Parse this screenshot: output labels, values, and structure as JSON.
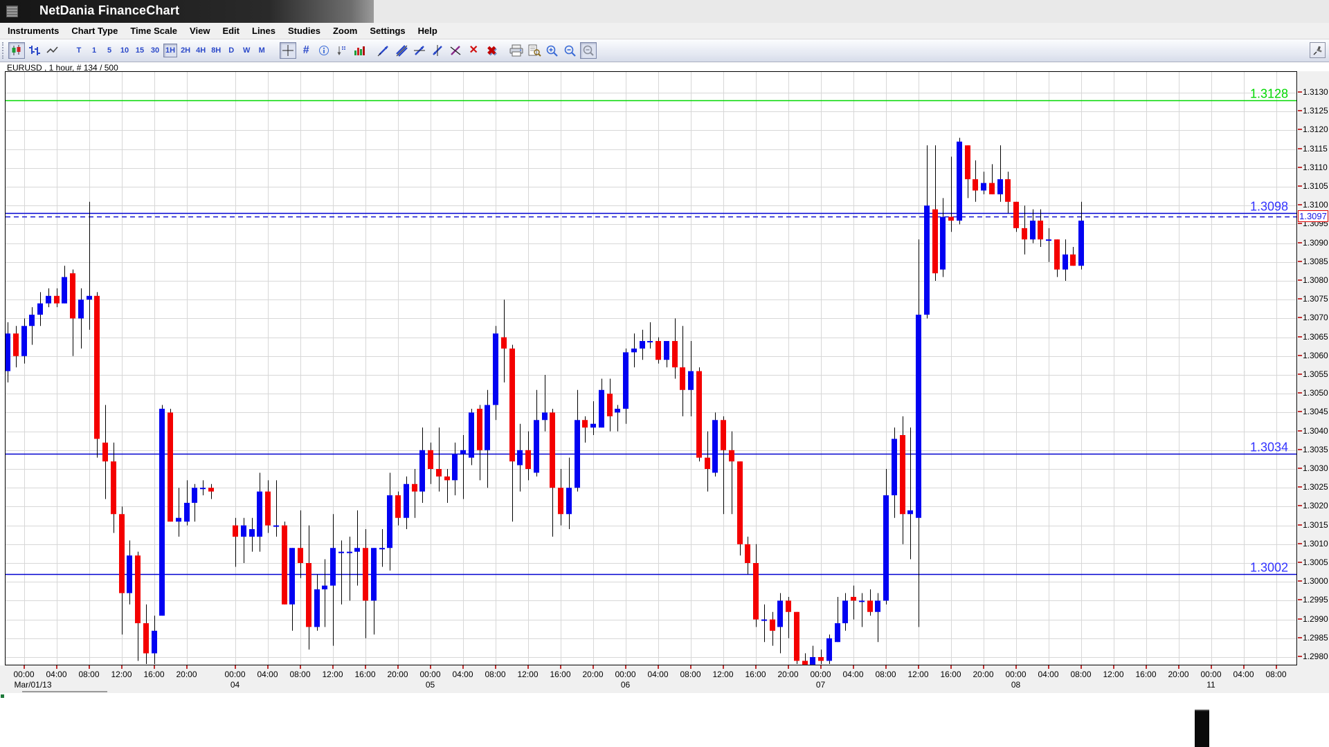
{
  "window": {
    "title": "NetDania FinanceChart"
  },
  "menu": {
    "items": [
      "Instruments",
      "Chart Type",
      "Time Scale",
      "View",
      "Edit",
      "Lines",
      "Studies",
      "Zoom",
      "Settings",
      "Help"
    ]
  },
  "toolbar": {
    "chart_type_buttons": [
      {
        "name": "candlestick-chart-type",
        "selected": true
      },
      {
        "name": "bar-chart-type",
        "selected": false
      },
      {
        "name": "line-chart-type",
        "selected": false
      }
    ],
    "periods": [
      "T",
      "1",
      "5",
      "10",
      "15",
      "30",
      "1H",
      "2H",
      "4H",
      "8H",
      "D",
      "W",
      "M"
    ],
    "selected_period": "1H",
    "tool_buttons": [
      {
        "name": "crosshair",
        "selected": true
      },
      {
        "name": "grid",
        "selected": false
      },
      {
        "name": "info",
        "selected": false
      },
      {
        "name": "pointer-values",
        "selected": false
      },
      {
        "name": "volume",
        "selected": false
      }
    ],
    "line_buttons": [
      {
        "name": "draw-trendline"
      },
      {
        "name": "draw-channel"
      },
      {
        "name": "draw-horizontal-line"
      },
      {
        "name": "draw-vertical-line"
      },
      {
        "name": "remove-line"
      },
      {
        "name": "delete-selected"
      },
      {
        "name": "delete-all"
      }
    ],
    "output_buttons": [
      {
        "name": "print"
      },
      {
        "name": "print-preview"
      },
      {
        "name": "zoom-in"
      },
      {
        "name": "zoom-out"
      },
      {
        "name": "zoom-reset",
        "selected": true
      }
    ],
    "pin_button": {
      "name": "pin-window"
    }
  },
  "chart": {
    "label": "EURUSD , 1 hour, # 134 / 500",
    "colors": {
      "up": "#0202f2",
      "down": "#f40000",
      "grid": "#d7d7d7",
      "level_blue": "#0000d0",
      "level_label_blue": "#3333ff",
      "level_green": "#00d800",
      "axis_tick_red": "#c03030"
    },
    "y_axis": {
      "min": 1.298,
      "max": 1.313,
      "step": 0.0005
    },
    "levels": [
      {
        "label": "1.3128",
        "price": 1.3128,
        "color": "green",
        "style": "solid"
      },
      {
        "label": "1.3098",
        "price": 1.3098,
        "color": "blue",
        "style": "solid"
      },
      {
        "label": "1.3034",
        "price": 1.3034,
        "color": "blue",
        "style": "solid"
      },
      {
        "label": "1.3002",
        "price": 1.3002,
        "color": "blue",
        "style": "solid"
      }
    ],
    "current_price": {
      "label": "1.3097",
      "price": 1.3097
    },
    "date_labels": {
      "Mar/01": "Mar/01/13",
      "Mar/04": "04",
      "Mar/05": "05",
      "Mar/06": "06",
      "Mar/07": "07",
      "Mar/08": "08",
      "Mar/11": "11"
    }
  },
  "chart_data": {
    "type": "candlestick",
    "instrument": "EURUSD",
    "interval": "1 hour",
    "ylim": [
      1.298,
      1.313
    ],
    "candles": [
      [
        "Feb/28",
        "22:00",
        1.3056,
        1.3069,
        1.3053,
        1.3066
      ],
      [
        "Feb/28",
        "23:00",
        1.3066,
        1.3068,
        1.3057,
        1.306
      ],
      [
        "Mar/01",
        "00:00",
        1.306,
        1.307,
        1.3058,
        1.3068
      ],
      [
        "Mar/01",
        "01:00",
        1.3068,
        1.3073,
        1.3063,
        1.3071
      ],
      [
        "Mar/01",
        "02:00",
        1.3071,
        1.3077,
        1.3068,
        1.3074
      ],
      [
        "Mar/01",
        "03:00",
        1.3074,
        1.3078,
        1.3073,
        1.3076
      ],
      [
        "Mar/01",
        "04:00",
        1.3076,
        1.3078,
        1.3073,
        1.3074
      ],
      [
        "Mar/01",
        "05:00",
        1.3074,
        1.3084,
        1.3074,
        1.3081
      ],
      [
        "Mar/01",
        "06:00",
        1.3082,
        1.3083,
        1.306,
        1.307
      ],
      [
        "Mar/01",
        "07:00",
        1.307,
        1.3078,
        1.3062,
        1.3075
      ],
      [
        "Mar/01",
        "08:00",
        1.3075,
        1.3101,
        1.3067,
        1.3076
      ],
      [
        "Mar/01",
        "09:00",
        1.3076,
        1.3077,
        1.3033,
        1.3038
      ],
      [
        "Mar/01",
        "10:00",
        1.3037,
        1.3047,
        1.3022,
        1.3032
      ],
      [
        "Mar/01",
        "11:00",
        1.3032,
        1.3037,
        1.3013,
        1.3018
      ],
      [
        "Mar/01",
        "12:00",
        1.3018,
        1.302,
        1.2986,
        1.2997
      ],
      [
        "Mar/01",
        "13:00",
        1.2997,
        1.3011,
        1.2994,
        1.3007
      ],
      [
        "Mar/01",
        "14:00",
        1.3007,
        1.3008,
        1.2979,
        1.2989
      ],
      [
        "Mar/01",
        "15:00",
        1.2989,
        1.2994,
        1.2976,
        1.2981
      ],
      [
        "Mar/01",
        "16:00",
        1.2981,
        1.2991,
        1.2977,
        1.2987
      ],
      [
        "Mar/01",
        "17:00",
        1.2991,
        1.3047,
        1.2991,
        1.3046
      ],
      [
        "Mar/01",
        "18:00",
        1.3045,
        1.3046,
        1.3016,
        1.3016
      ],
      [
        "Mar/01",
        "19:00",
        1.3016,
        1.3025,
        1.3012,
        1.3017
      ],
      [
        "Mar/01",
        "20:00",
        1.3016,
        1.3027,
        1.3015,
        1.3021
      ],
      [
        "Mar/01",
        "21:00",
        1.3021,
        1.3026,
        1.3016,
        1.3025
      ],
      [
        "Mar/01",
        "22:00",
        1.3025,
        1.3027,
        1.3023,
        1.3025
      ],
      [
        "Mar/01",
        "23:00",
        1.3025,
        1.3026,
        1.3022,
        1.3024
      ],
      [
        "Mar/04",
        "00:00",
        1.3015,
        1.3017,
        1.3004,
        1.3012
      ],
      [
        "Mar/04",
        "01:00",
        1.3012,
        1.3017,
        1.3005,
        1.3015
      ],
      [
        "Mar/04",
        "02:00",
        1.3012,
        1.3017,
        1.3008,
        1.3014
      ],
      [
        "Mar/04",
        "03:00",
        1.3012,
        1.3029,
        1.3008,
        1.3024
      ],
      [
        "Mar/04",
        "04:00",
        1.3024,
        1.3027,
        1.3013,
        1.3015
      ],
      [
        "Mar/04",
        "05:00",
        1.3015,
        1.3027,
        1.3012,
        1.3015
      ],
      [
        "Mar/04",
        "06:00",
        1.3015,
        1.3016,
        1.2994,
        1.2994
      ],
      [
        "Mar/04",
        "07:00",
        1.2994,
        1.3009,
        1.2987,
        1.3009
      ],
      [
        "Mar/04",
        "08:00",
        1.3009,
        1.3019,
        1.3001,
        1.3005
      ],
      [
        "Mar/04",
        "09:00",
        1.3005,
        1.3015,
        1.2982,
        1.2988
      ],
      [
        "Mar/04",
        "10:00",
        1.2988,
        1.3002,
        1.2987,
        1.2998
      ],
      [
        "Mar/04",
        "11:00",
        1.2998,
        1.3006,
        1.2988,
        1.2999
      ],
      [
        "Mar/04",
        "12:00",
        1.2999,
        1.3018,
        1.2983,
        1.3009
      ],
      [
        "Mar/04",
        "13:00",
        1.3008,
        1.3011,
        1.2994,
        1.3008
      ],
      [
        "Mar/04",
        "14:00",
        1.3008,
        1.3012,
        1.2995,
        1.3008
      ],
      [
        "Mar/04",
        "15:00",
        1.3008,
        1.3019,
        1.2999,
        1.3009
      ],
      [
        "Mar/04",
        "16:00",
        1.3009,
        1.3014,
        1.2985,
        1.2995
      ],
      [
        "Mar/04",
        "17:00",
        1.2995,
        1.3009,
        1.2986,
        1.3009
      ],
      [
        "Mar/04",
        "18:00",
        1.3009,
        1.3014,
        1.3004,
        1.3009
      ],
      [
        "Mar/04",
        "19:00",
        1.3009,
        1.3029,
        1.3003,
        1.3023
      ],
      [
        "Mar/04",
        "20:00",
        1.3023,
        1.3024,
        1.3015,
        1.3017
      ],
      [
        "Mar/04",
        "21:00",
        1.3017,
        1.3028,
        1.3014,
        1.3026
      ],
      [
        "Mar/04",
        "22:00",
        1.3026,
        1.303,
        1.3017,
        1.3024
      ],
      [
        "Mar/04",
        "23:00",
        1.3024,
        1.3041,
        1.3021,
        1.3035
      ],
      [
        "Mar/05",
        "00:00",
        1.3035,
        1.3037,
        1.3026,
        1.303
      ],
      [
        "Mar/05",
        "01:00",
        1.303,
        1.3041,
        1.3024,
        1.3028
      ],
      [
        "Mar/05",
        "02:00",
        1.3028,
        1.303,
        1.3021,
        1.3027
      ],
      [
        "Mar/05",
        "03:00",
        1.3027,
        1.3037,
        1.3023,
        1.3034
      ],
      [
        "Mar/05",
        "04:00",
        1.3034,
        1.3039,
        1.3022,
        1.3035
      ],
      [
        "Mar/05",
        "05:00",
        1.3033,
        1.3046,
        1.3031,
        1.3045
      ],
      [
        "Mar/05",
        "06:00",
        1.3046,
        1.3047,
        1.3027,
        1.3035
      ],
      [
        "Mar/05",
        "07:00",
        1.3035,
        1.3051,
        1.3025,
        1.3047
      ],
      [
        "Mar/05",
        "08:00",
        1.3047,
        1.3068,
        1.3043,
        1.3066
      ],
      [
        "Mar/05",
        "09:00",
        1.3065,
        1.3075,
        1.3053,
        1.3062
      ],
      [
        "Mar/05",
        "10:00",
        1.3062,
        1.3063,
        1.3016,
        1.3032
      ],
      [
        "Mar/05",
        "11:00",
        1.3031,
        1.3042,
        1.3024,
        1.3035
      ],
      [
        "Mar/05",
        "12:00",
        1.3035,
        1.304,
        1.3027,
        1.303
      ],
      [
        "Mar/05",
        "13:00",
        1.3029,
        1.3051,
        1.3028,
        1.3043
      ],
      [
        "Mar/05",
        "14:00",
        1.3043,
        1.3055,
        1.304,
        1.3045
      ],
      [
        "Mar/05",
        "15:00",
        1.3045,
        1.3046,
        1.3012,
        1.3025
      ],
      [
        "Mar/05",
        "16:00",
        1.3025,
        1.303,
        1.3015,
        1.3018
      ],
      [
        "Mar/05",
        "17:00",
        1.3018,
        1.3033,
        1.3014,
        1.3025
      ],
      [
        "Mar/05",
        "18:00",
        1.3025,
        1.3051,
        1.3024,
        1.3043
      ],
      [
        "Mar/05",
        "19:00",
        1.3043,
        1.3044,
        1.3037,
        1.3041
      ],
      [
        "Mar/05",
        "20:00",
        1.3041,
        1.3048,
        1.3039,
        1.3042
      ],
      [
        "Mar/05",
        "21:00",
        1.3041,
        1.3054,
        1.3041,
        1.3051
      ],
      [
        "Mar/05",
        "22:00",
        1.305,
        1.3054,
        1.304,
        1.3044
      ],
      [
        "Mar/05",
        "23:00",
        1.3045,
        1.3047,
        1.304,
        1.3046
      ],
      [
        "Mar/06",
        "00:00",
        1.3046,
        1.3062,
        1.3042,
        1.3061
      ],
      [
        "Mar/06",
        "01:00",
        1.3061,
        1.3066,
        1.3057,
        1.3062
      ],
      [
        "Mar/06",
        "02:00",
        1.3062,
        1.3067,
        1.3059,
        1.3064
      ],
      [
        "Mar/06",
        "03:00",
        1.3064,
        1.3069,
        1.3062,
        1.3064
      ],
      [
        "Mar/06",
        "04:00",
        1.3064,
        1.3065,
        1.3058,
        1.3059
      ],
      [
        "Mar/06",
        "05:00",
        1.3059,
        1.3064,
        1.3057,
        1.3064
      ],
      [
        "Mar/06",
        "06:00",
        1.3064,
        1.307,
        1.3054,
        1.3057
      ],
      [
        "Mar/06",
        "07:00",
        1.3057,
        1.3068,
        1.3044,
        1.3051
      ],
      [
        "Mar/06",
        "08:00",
        1.3051,
        1.3064,
        1.3044,
        1.3056
      ],
      [
        "Mar/06",
        "09:00",
        1.3056,
        1.3057,
        1.3032,
        1.3033
      ],
      [
        "Mar/06",
        "10:00",
        1.3033,
        1.304,
        1.3024,
        1.303
      ],
      [
        "Mar/06",
        "11:00",
        1.3029,
        1.3045,
        1.3028,
        1.3043
      ],
      [
        "Mar/06",
        "12:00",
        1.3043,
        1.3044,
        1.3018,
        1.3035
      ],
      [
        "Mar/06",
        "13:00",
        1.3035,
        1.304,
        1.3018,
        1.3032
      ],
      [
        "Mar/06",
        "14:00",
        1.3032,
        1.3032,
        1.3007,
        1.301
      ],
      [
        "Mar/06",
        "15:00",
        1.301,
        1.3012,
        1.3002,
        1.3005
      ],
      [
        "Mar/06",
        "16:00",
        1.3005,
        1.301,
        1.2988,
        1.299
      ],
      [
        "Mar/06",
        "17:00",
        1.299,
        1.2994,
        1.2984,
        1.299
      ],
      [
        "Mar/06",
        "18:00",
        1.299,
        1.2992,
        1.2983,
        1.2987
      ],
      [
        "Mar/06",
        "19:00",
        1.2988,
        1.2997,
        1.2981,
        1.2995
      ],
      [
        "Mar/06",
        "20:00",
        1.2995,
        1.2996,
        1.2985,
        1.2992
      ],
      [
        "Mar/06",
        "21:00",
        1.2992,
        1.2992,
        1.2977,
        1.2979
      ],
      [
        "Mar/06",
        "22:00",
        1.2979,
        1.2981,
        1.2976,
        1.2978
      ],
      [
        "Mar/06",
        "23:00",
        1.2978,
        1.2983,
        1.2977,
        1.298
      ],
      [
        "Mar/07",
        "00:00",
        1.298,
        1.2982,
        1.2977,
        1.2979
      ],
      [
        "Mar/07",
        "01:00",
        1.2979,
        1.2986,
        1.2977,
        1.2985
      ],
      [
        "Mar/07",
        "02:00",
        1.2984,
        1.2996,
        1.2984,
        1.2989
      ],
      [
        "Mar/07",
        "03:00",
        1.2989,
        1.2997,
        1.2987,
        1.2995
      ],
      [
        "Mar/07",
        "04:00",
        1.2996,
        1.2999,
        1.299,
        1.2995
      ],
      [
        "Mar/07",
        "05:00",
        1.2995,
        1.2997,
        1.2988,
        1.2995
      ],
      [
        "Mar/07",
        "06:00",
        1.2995,
        1.2998,
        1.2991,
        1.2992
      ],
      [
        "Mar/07",
        "07:00",
        1.2992,
        1.2997,
        1.2984,
        1.2995
      ],
      [
        "Mar/07",
        "08:00",
        1.2995,
        1.303,
        1.2994,
        1.3023
      ],
      [
        "Mar/07",
        "09:00",
        1.3023,
        1.3041,
        1.3017,
        1.3038
      ],
      [
        "Mar/07",
        "10:00",
        1.3039,
        1.3044,
        1.301,
        1.3018
      ],
      [
        "Mar/07",
        "11:00",
        1.3018,
        1.3041,
        1.3006,
        1.3019
      ],
      [
        "Mar/07",
        "12:00",
        1.3017,
        1.3091,
        1.2988,
        1.3071
      ],
      [
        "Mar/07",
        "13:00",
        1.3071,
        1.3116,
        1.307,
        1.31
      ],
      [
        "Mar/07",
        "14:00",
        1.3099,
        1.3116,
        1.308,
        1.3082
      ],
      [
        "Mar/07",
        "15:00",
        1.3083,
        1.3102,
        1.3081,
        1.3097
      ],
      [
        "Mar/07",
        "16:00",
        1.3097,
        1.3113,
        1.3093,
        1.3096
      ],
      [
        "Mar/07",
        "17:00",
        1.3096,
        1.3118,
        1.3095,
        1.3117
      ],
      [
        "Mar/07",
        "18:00",
        1.3116,
        1.3116,
        1.3102,
        1.3107
      ],
      [
        "Mar/07",
        "19:00",
        1.3107,
        1.3112,
        1.3101,
        1.3104
      ],
      [
        "Mar/07",
        "20:00",
        1.3104,
        1.3109,
        1.3103,
        1.3106
      ],
      [
        "Mar/07",
        "21:00",
        1.3106,
        1.3111,
        1.3103,
        1.3103
      ],
      [
        "Mar/07",
        "22:00",
        1.3103,
        1.3116,
        1.3101,
        1.3107
      ],
      [
        "Mar/07",
        "23:00",
        1.3107,
        1.3109,
        1.3098,
        1.3101
      ],
      [
        "Mar/08",
        "00:00",
        1.3101,
        1.3101,
        1.3093,
        1.3094
      ],
      [
        "Mar/08",
        "01:00",
        1.3094,
        1.31,
        1.3087,
        1.3091
      ],
      [
        "Mar/08",
        "02:00",
        1.3091,
        1.3099,
        1.309,
        1.3096
      ],
      [
        "Mar/08",
        "03:00",
        1.3096,
        1.3099,
        1.3089,
        1.3091
      ],
      [
        "Mar/08",
        "04:00",
        1.3091,
        1.3094,
        1.3085,
        1.3091
      ],
      [
        "Mar/08",
        "05:00",
        1.3091,
        1.3091,
        1.3081,
        1.3083
      ],
      [
        "Mar/08",
        "06:00",
        1.3083,
        1.3091,
        1.308,
        1.3087
      ],
      [
        "Mar/08",
        "07:00",
        1.3087,
        1.3089,
        1.3084,
        1.3084
      ],
      [
        "Mar/08",
        "08:00",
        1.3084,
        1.3101,
        1.3083,
        1.3096
      ]
    ],
    "future_slots": [
      [
        "Mar/08",
        "09:00"
      ],
      [
        "Mar/08",
        "10:00"
      ],
      [
        "Mar/08",
        "11:00"
      ],
      [
        "Mar/08",
        "12:00"
      ],
      [
        "Mar/08",
        "13:00"
      ],
      [
        "Mar/08",
        "14:00"
      ],
      [
        "Mar/08",
        "15:00"
      ],
      [
        "Mar/08",
        "16:00"
      ],
      [
        "Mar/08",
        "17:00"
      ],
      [
        "Mar/08",
        "18:00"
      ],
      [
        "Mar/08",
        "19:00"
      ],
      [
        "Mar/08",
        "20:00"
      ],
      [
        "Mar/08",
        "21:00"
      ],
      [
        "Mar/08",
        "22:00"
      ],
      [
        "Mar/08",
        "23:00"
      ],
      [
        "Mar/11",
        "00:00"
      ],
      [
        "Mar/11",
        "01:00"
      ],
      [
        "Mar/11",
        "02:00"
      ],
      [
        "Mar/11",
        "03:00"
      ],
      [
        "Mar/11",
        "04:00"
      ],
      [
        "Mar/11",
        "05:00"
      ],
      [
        "Mar/11",
        "06:00"
      ],
      [
        "Mar/11",
        "07:00"
      ],
      [
        "Mar/11",
        "08:00"
      ],
      [
        "Mar/11",
        "09:00"
      ],
      [
        "Mar/11",
        "10:00"
      ]
    ],
    "weekend_gap_slots": 2
  }
}
